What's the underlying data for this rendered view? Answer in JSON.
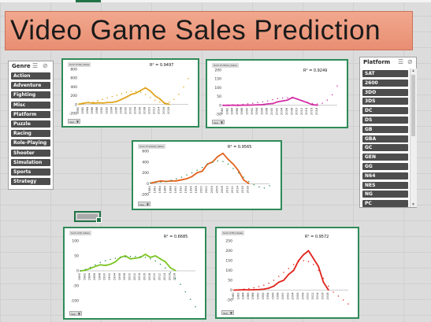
{
  "title": "Video Game Sales Prediction",
  "genre_slicer": {
    "title": "Genre",
    "items": [
      "Action",
      "Adventure",
      "Fighting",
      "Misc",
      "Platform",
      "Puzzle",
      "Racing",
      "Role-Playing",
      "Shooter",
      "Simulation",
      "Sports",
      "Strategy"
    ]
  },
  "platform_slicer": {
    "title": "Platform",
    "items": [
      "SAT",
      "2600",
      "3DO",
      "3DS",
      "DC",
      "DS",
      "GB",
      "GBA",
      "GC",
      "GEN",
      "GG",
      "N64",
      "NES",
      "NG",
      "PC"
    ]
  },
  "year_button_label": "Year",
  "chart_data": [
    {
      "type": "line",
      "tag": "Sum of NA_Sales",
      "r2": "R² = 0.9497",
      "categories": [
        "1980",
        "1982",
        "1984",
        "1986",
        "1988",
        "1990",
        "1992",
        "1994",
        "1996",
        "1998",
        "2000",
        "2002",
        "2004",
        "2006",
        "2008",
        "2010",
        "2012",
        "2014",
        "2016",
        "2018"
      ],
      "ylim": [
        -200,
        800
      ],
      "yticks": [
        800,
        600,
        400,
        200,
        0,
        -200
      ],
      "series": [
        {
          "values": [
            10,
            30,
            45,
            30,
            40,
            35,
            45,
            50,
            70,
            120,
            170,
            230,
            260,
            320,
            380,
            310,
            200,
            130,
            30,
            5
          ]
        }
      ],
      "trend": [
        5,
        20,
        40,
        60,
        90,
        120,
        150,
        180,
        210,
        250,
        280,
        300,
        300,
        280,
        230,
        160,
        100,
        60,
        40,
        60,
        120,
        230,
        400,
        590
      ],
      "series_color": "#e0a51c",
      "line_color": "#dfa40f"
    },
    {
      "type": "line",
      "tag": "Sum of Other_Sales",
      "r2": "R² = 0.9249",
      "categories": [
        "1980",
        "1982",
        "1984",
        "1986",
        "1988",
        "1990",
        "1992",
        "1994",
        "1996",
        "1998",
        "2000",
        "2002",
        "2004",
        "2006",
        "2008",
        "2010",
        "2012",
        "2014",
        "2016",
        "2018"
      ],
      "ylim": [
        -50,
        200
      ],
      "yticks": [
        200,
        150,
        100,
        50,
        0,
        -50
      ],
      "series": [
        {
          "values": [
            0,
            0,
            1,
            0,
            1,
            1,
            2,
            3,
            4,
            8,
            10,
            20,
            25,
            30,
            45,
            35,
            25,
            15,
            4,
            1
          ]
        }
      ],
      "trend": [
        2,
        3,
        3,
        4,
        6,
        9,
        12,
        16,
        20,
        25,
        32,
        38,
        42,
        43,
        41,
        35,
        27,
        18,
        10,
        8,
        12,
        30,
        60,
        110
      ],
      "series_color": "#d42fa6",
      "line_color": "#d42fa6"
    },
    {
      "type": "line",
      "tag": "Sum of Global_Sales",
      "r2": "R² = 0.9565",
      "categories": [
        "1980",
        "1982",
        "1984",
        "1986",
        "1988",
        "1990",
        "1992",
        "1994",
        "1996",
        "1998",
        "2000",
        "2002",
        "2004",
        "2006",
        "2008",
        "2010",
        "2012",
        "2014",
        "2016",
        "2018"
      ],
      "ylim": [
        -200,
        600
      ],
      "yticks": [
        600,
        400,
        200,
        0,
        -200
      ],
      "series": [
        {
          "values": [
            10,
            30,
            50,
            40,
            50,
            50,
            70,
            90,
            130,
            200,
            230,
            360,
            400,
            500,
            560,
            450,
            360,
            240,
            70,
            2
          ]
        }
      ],
      "trend": [
        10,
        20,
        30,
        40,
        60,
        90,
        120,
        160,
        200,
        250,
        300,
        360,
        400,
        420,
        410,
        360,
        280,
        200,
        120,
        40,
        -20,
        -60,
        -80,
        -40
      ],
      "series_color": "#e2621c",
      "line_color": "#2e8b57"
    },
    {
      "type": "line",
      "tag": "Sum of JP_Sales",
      "r2": "R² = 0.6685",
      "categories": [
        "1980",
        "1982",
        "1984",
        "1986",
        "1988",
        "1990",
        "1992",
        "1994",
        "1996",
        "1998",
        "2000",
        "2002",
        "2004",
        "2006",
        "2008",
        "2010",
        "2012",
        "2014",
        "2016",
        "2018"
      ],
      "ylim": [
        -100,
        100
      ],
      "yticks": [
        100,
        50,
        0,
        -50,
        -100
      ],
      "series": [
        {
          "values": [
            0,
            2,
            8,
            15,
            20,
            18,
            22,
            30,
            45,
            50,
            40,
            42,
            45,
            55,
            45,
            50,
            40,
            30,
            10,
            1
          ]
        }
      ],
      "trend": [
        0,
        5,
        12,
        20,
        28,
        34,
        38,
        42,
        45,
        47,
        48,
        48,
        47,
        45,
        40,
        33,
        22,
        10,
        -5,
        -25,
        -45,
        -70,
        -95,
        -120
      ],
      "series_color": "#7cc520",
      "line_color": "#2e8b57"
    },
    {
      "type": "line",
      "tag": "Sum of EU_Sales",
      "r2": "R² = 0.9572",
      "categories": [
        "1980",
        "1982",
        "1984",
        "1986",
        "1988",
        "1990",
        "1992",
        "1994",
        "1996",
        "1998",
        "2000",
        "2002",
        "2004",
        "2006",
        "2008",
        "2010",
        "2012",
        "2014",
        "2016",
        "2018"
      ],
      "ylim": [
        -50,
        250
      ],
      "yticks": [
        250,
        200,
        150,
        100,
        50,
        0,
        -50
      ],
      "series": [
        {
          "values": [
            0,
            1,
            2,
            1,
            2,
            3,
            5,
            10,
            20,
            40,
            50,
            80,
            100,
            150,
            180,
            200,
            160,
            120,
            40,
            1
          ]
        }
      ],
      "trend": [
        0,
        2,
        5,
        8,
        12,
        18,
        25,
        35,
        50,
        70,
        90,
        110,
        130,
        145,
        150,
        145,
        130,
        100,
        60,
        20,
        -10,
        -30,
        -50,
        -70
      ],
      "series_color": "#e0231c",
      "line_color": "#e0231c"
    }
  ]
}
